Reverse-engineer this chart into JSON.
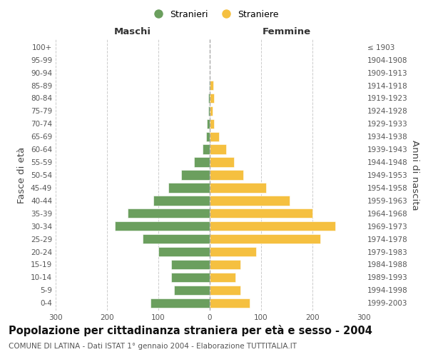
{
  "age_groups": [
    "0-4",
    "5-9",
    "10-14",
    "15-19",
    "20-24",
    "25-29",
    "30-34",
    "35-39",
    "40-44",
    "45-49",
    "50-54",
    "55-59",
    "60-64",
    "65-69",
    "70-74",
    "75-79",
    "80-84",
    "85-89",
    "90-94",
    "95-99",
    "100+"
  ],
  "birth_years": [
    "1999-2003",
    "1994-1998",
    "1989-1993",
    "1984-1988",
    "1979-1983",
    "1974-1978",
    "1969-1973",
    "1964-1968",
    "1959-1963",
    "1954-1958",
    "1949-1953",
    "1944-1948",
    "1939-1943",
    "1934-1938",
    "1929-1933",
    "1924-1928",
    "1919-1923",
    "1914-1918",
    "1909-1913",
    "1904-1908",
    "≤ 1903"
  ],
  "maschi": [
    115,
    70,
    75,
    75,
    100,
    130,
    185,
    160,
    110,
    80,
    55,
    30,
    14,
    7,
    5,
    3,
    3,
    2,
    0,
    0,
    0
  ],
  "femmine": [
    78,
    60,
    50,
    60,
    90,
    215,
    245,
    200,
    155,
    110,
    65,
    47,
    32,
    18,
    8,
    6,
    8,
    7,
    0,
    0,
    0
  ],
  "maschi_color": "#6b9f5e",
  "femmine_color": "#f5c040",
  "background_color": "#ffffff",
  "grid_color": "#cccccc",
  "title": "Popolazione per cittadinanza straniera per età e sesso - 2004",
  "subtitle": "COMUNE DI LATINA - Dati ISTAT 1° gennaio 2004 - Elaborazione TUTTITALIA.IT",
  "left_label": "Maschi",
  "right_label": "Femmine",
  "ylabel_left": "Fasce di età",
  "ylabel_right": "Anni di nascita",
  "legend_maschi": "Stranieri",
  "legend_femmine": "Straniere",
  "xlim": 300,
  "title_fontsize": 10.5,
  "subtitle_fontsize": 7.5,
  "label_fontsize": 9.5,
  "tick_fontsize": 7.5
}
